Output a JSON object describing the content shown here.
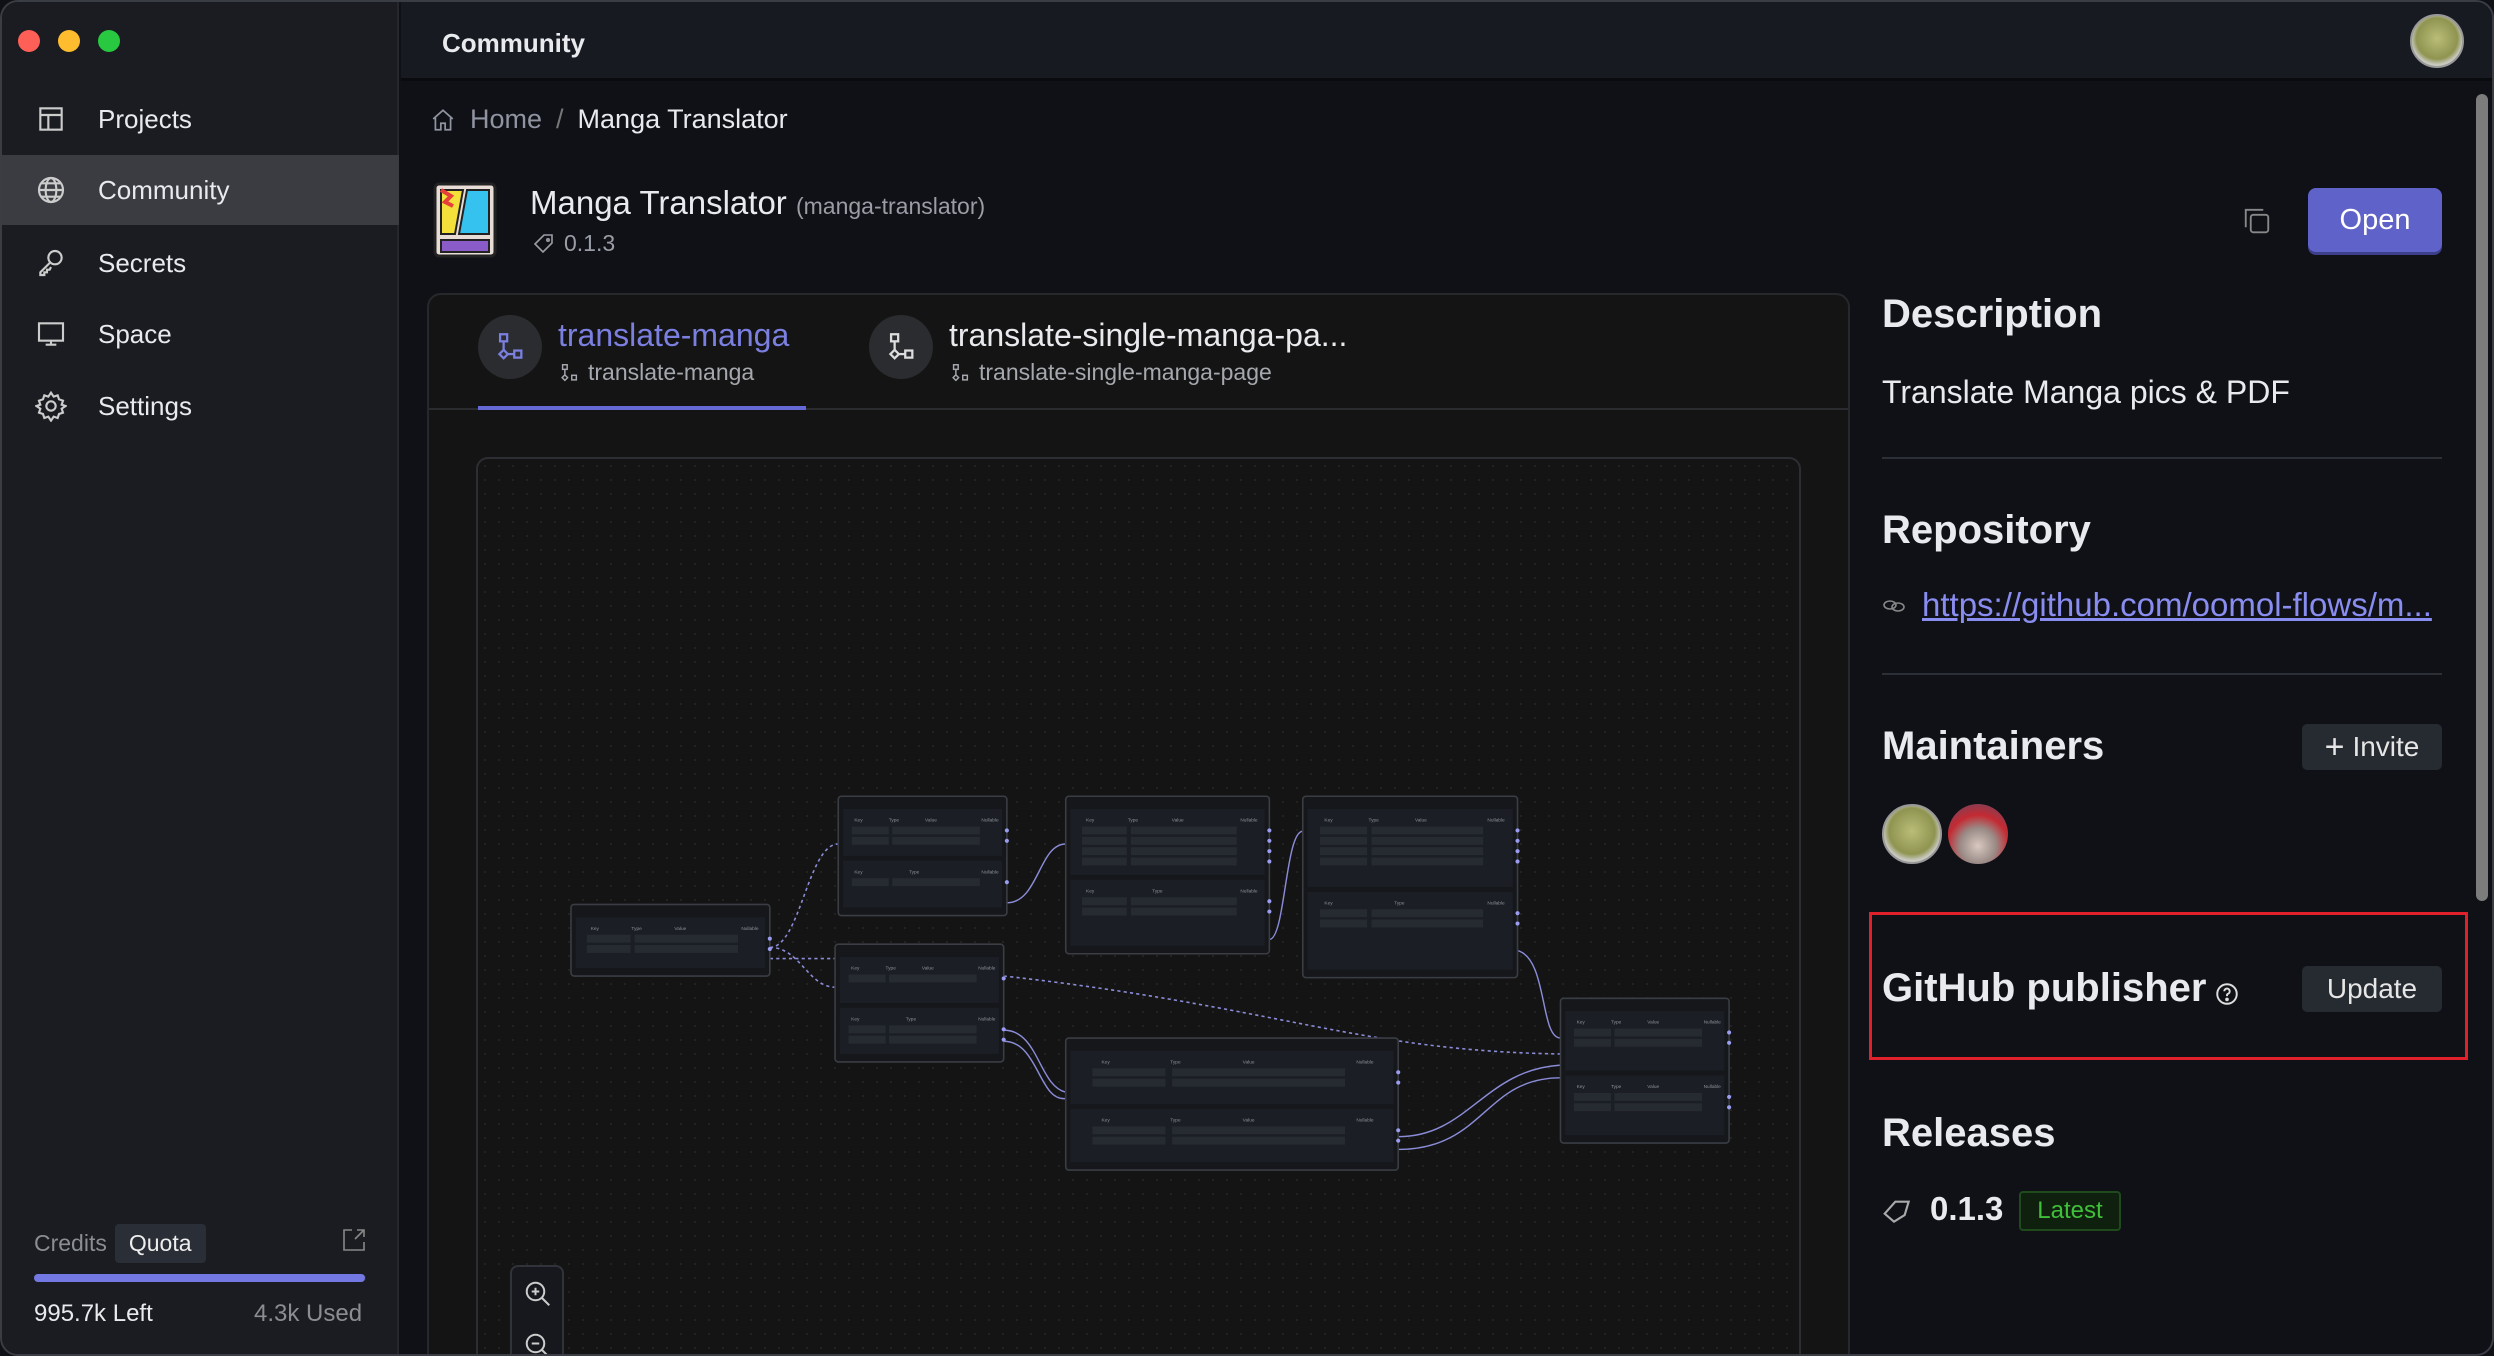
{
  "sidebar": {
    "items": [
      {
        "label": "Projects",
        "icon": "grid-icon"
      },
      {
        "label": "Community",
        "icon": "globe-icon",
        "active": true
      },
      {
        "label": "Secrets",
        "icon": "key-icon"
      },
      {
        "label": "Space",
        "icon": "monitor-icon"
      },
      {
        "label": "Settings",
        "icon": "gear-icon"
      }
    ],
    "credits": {
      "tab_credits": "Credits",
      "tab_quota": "Quota",
      "left": "995.7k Left",
      "used": "4.3k Used",
      "progress_percent": 99.6
    }
  },
  "header": {
    "title": "Community"
  },
  "breadcrumb": {
    "home": "Home",
    "separator": "/",
    "current": "Manga Translator"
  },
  "package": {
    "name": "Manga Translator",
    "slug": "(manga-translator)",
    "version": "0.1.3",
    "open_label": "Open"
  },
  "flows": {
    "tabs": [
      {
        "title": "translate-manga",
        "subtitle": "translate-manga",
        "active": true
      },
      {
        "title": "translate-single-manga-pa...",
        "subtitle": "translate-single-manga-page",
        "active": false
      }
    ],
    "columns": [
      "Key",
      "Type",
      "Value",
      "Nullable"
    ]
  },
  "details": {
    "description_heading": "Description",
    "description": "Translate Manga pics & PDF",
    "repository_heading": "Repository",
    "repository_url": "https://github.com/oomol-flows/m...",
    "maintainers_heading": "Maintainers",
    "invite_label": "Invite",
    "publisher_heading": "GitHub publisher",
    "update_label": "Update",
    "releases_heading": "Releases",
    "release_version": "0.1.3",
    "release_badge": "Latest"
  },
  "colors": {
    "accent": "#5f63c9",
    "highlight_box": "#e0202a",
    "latest": "#3fbf3a"
  }
}
